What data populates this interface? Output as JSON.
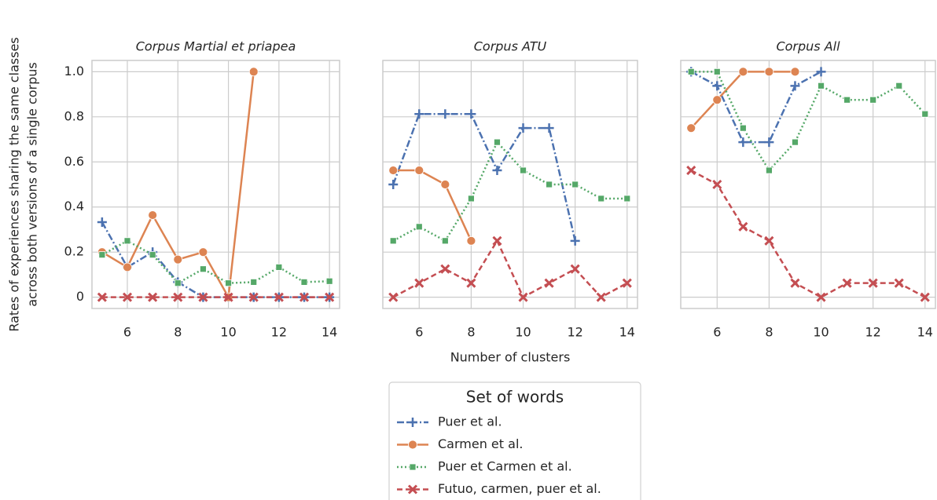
{
  "chart_data": [
    {
      "type": "line",
      "title": "Corpus Martial et priapea",
      "ylabel": [
        "Rates of experiences sharing the same classes",
        "across both versions of a single corpus"
      ],
      "legend_title": "Set of words",
      "x": [
        5,
        6,
        7,
        8,
        9,
        10,
        11,
        12,
        13,
        14
      ],
      "xlim": [
        4.6,
        14.4
      ],
      "xticks": [
        6,
        8,
        10,
        12,
        14
      ],
      "ylim": [
        -0.05,
        1.05
      ],
      "yticks": [
        0.0,
        {
          "value": 0.2,
          "label": "0.2"
        },
        {
          "value": 0.4,
          "label": "0.4"
        },
        {
          "value": 0.6,
          "label": "0.6"
        },
        {
          "value": 0.8,
          "label": "0.8"
        },
        {
          "value": 1.0,
          "label": "1.0"
        }
      ],
      "grid": true,
      "series": [
        {
          "name": "Puer et al.",
          "color": "#4c72b0",
          "values": [
            0.333,
            0.133,
            0.2,
            0.067,
            0,
            0,
            0,
            0,
            0,
            0
          ]
        },
        {
          "name": "Carmen et al.",
          "color": "#dd8452",
          "values": [
            0.2,
            0.133,
            0.364,
            0.167,
            0.2,
            0,
            1.0,
            null,
            null,
            null
          ]
        },
        {
          "name": "Puer et Carmen et al.",
          "color": "#55a868",
          "values": [
            0.188,
            0.25,
            0.188,
            0.0625,
            0.125,
            0.0625,
            0.067,
            0.133,
            0.067,
            0.071
          ]
        },
        {
          "name": "Futuo, carmen, puer et al.",
          "color": "#c44e52",
          "values": [
            0,
            0,
            0,
            0,
            0,
            0,
            0,
            0,
            0,
            0
          ]
        }
      ]
    },
    {
      "type": "line",
      "title": "Corpus ATU",
      "xlabel": "Number of clusters",
      "x": [
        5,
        6,
        7,
        8,
        9,
        10,
        11,
        12,
        13,
        14
      ],
      "xlim": [
        4.6,
        14.4
      ],
      "xticks": [
        6,
        8,
        10,
        12,
        14
      ],
      "ylim": [
        -0.05,
        1.05
      ],
      "grid": true,
      "series": [
        {
          "name": "Puer et al.",
          "color": "#4c72b0",
          "values": [
            0.5,
            0.8125,
            0.8125,
            0.8125,
            0.5625,
            0.75,
            0.75,
            0.25,
            null,
            null
          ]
        },
        {
          "name": "Carmen et al.",
          "color": "#dd8452",
          "values": [
            0.5625,
            0.5625,
            0.5,
            0.25,
            null,
            null,
            null,
            null,
            null,
            null
          ]
        },
        {
          "name": "Puer et Carmen et al.",
          "color": "#55a868",
          "values": [
            0.25,
            0.3125,
            0.25,
            0.4375,
            0.6875,
            0.5625,
            0.5,
            0.5,
            0.4375,
            0.4375
          ]
        },
        {
          "name": "Futuo, carmen, puer et al.",
          "color": "#c44e52",
          "values": [
            0,
            0.0625,
            0.125,
            0.0625,
            0.25,
            0,
            0.0625,
            0.125,
            0,
            0.0625
          ]
        }
      ]
    },
    {
      "type": "line",
      "title": "Corpus All",
      "x": [
        5,
        6,
        7,
        8,
        9,
        10,
        11,
        12,
        13,
        14
      ],
      "xlim": [
        4.6,
        14.4
      ],
      "xticks": [
        6,
        8,
        10,
        12,
        14
      ],
      "ylim": [
        -0.05,
        1.05
      ],
      "grid": true,
      "series": [
        {
          "name": "Puer et al.",
          "color": "#4c72b0",
          "values": [
            1.0,
            0.9375,
            0.6875,
            0.6875,
            0.9375,
            1.0,
            null,
            null,
            null,
            null
          ]
        },
        {
          "name": "Carmen et al.",
          "color": "#dd8452",
          "values": [
            0.75,
            0.875,
            1.0,
            1.0,
            1.0,
            null,
            null,
            null,
            null,
            null
          ]
        },
        {
          "name": "Puer et Carmen et al.",
          "color": "#55a868",
          "values": [
            1.0,
            1.0,
            0.75,
            0.5625,
            0.6875,
            0.9375,
            0.875,
            0.875,
            0.9375,
            0.8125
          ]
        },
        {
          "name": "Futuo, carmen, puer et al.",
          "color": "#c44e52",
          "values": [
            0.5625,
            0.5,
            0.3125,
            0.25,
            0.0625,
            0,
            0.0625,
            0.0625,
            0.0625,
            0
          ]
        }
      ]
    }
  ]
}
